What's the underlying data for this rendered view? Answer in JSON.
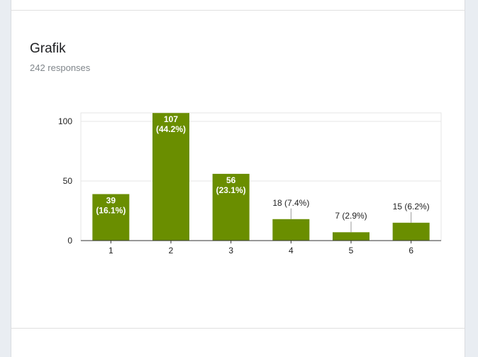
{
  "question": {
    "title": "Grafik",
    "responses": "242 responses"
  },
  "colors": {
    "bar": "#6a8e00",
    "grid": "#e6e6e6",
    "axis": "#333333",
    "text": "#222222",
    "inside_label": "#ffffff"
  },
  "chart_data": {
    "type": "bar",
    "categories": [
      "1",
      "2",
      "3",
      "4",
      "5",
      "6"
    ],
    "values": [
      39,
      107,
      56,
      18,
      7,
      15
    ],
    "data_labels": [
      "39 (16.1%)",
      "107 (44.2%)",
      "56 (23.1%)",
      "18 (7.4%)",
      "7 (2.9%)",
      "15 (6.2%)"
    ],
    "labels_inside": [
      true,
      true,
      true,
      false,
      false,
      false
    ],
    "y_ticks": [
      0,
      50,
      100
    ],
    "ylim": [
      0,
      107
    ],
    "grid": true,
    "legend": "none",
    "title": "",
    "xlabel": "",
    "ylabel": ""
  }
}
